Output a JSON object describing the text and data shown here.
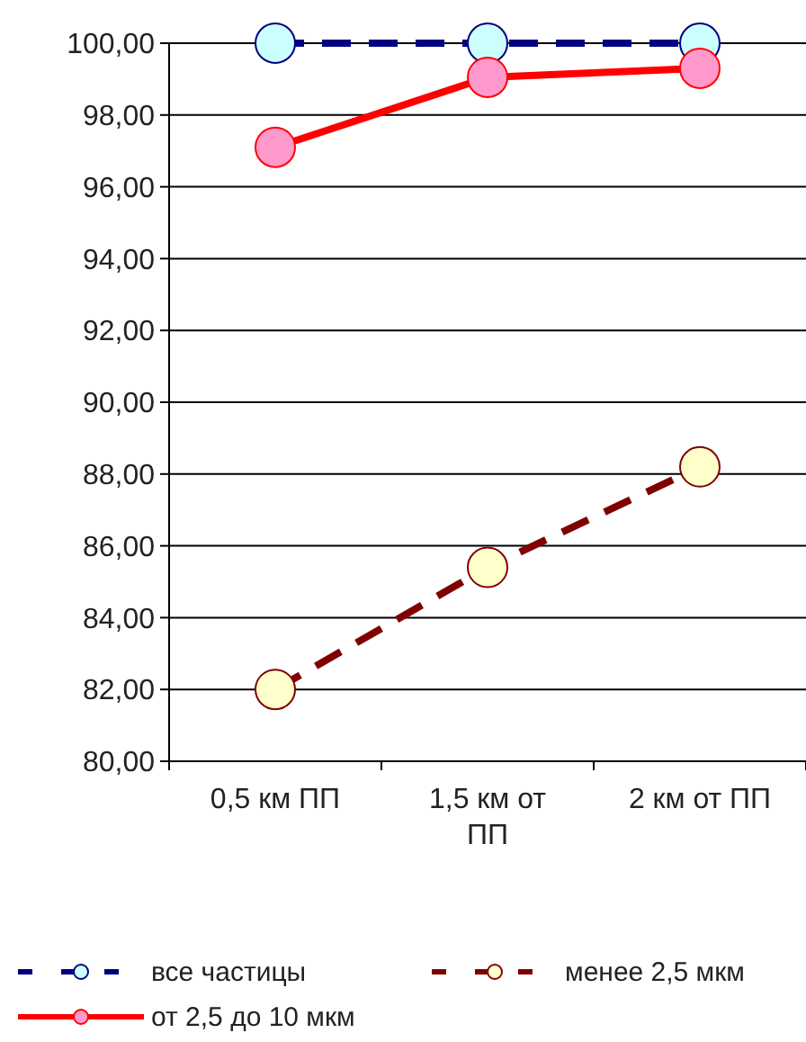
{
  "chart_data": {
    "type": "line",
    "categories": [
      "0,5 км ПП",
      "1,5 км от ПП",
      "2 км от ПП"
    ],
    "series": [
      {
        "name": "все частицы",
        "color": "#000080",
        "values": [
          100,
          100,
          100
        ],
        "line_style": "dashed"
      },
      {
        "name": "менее 2,5 мкм",
        "color": "#800000",
        "values": [
          82.0,
          85.4,
          88.2
        ],
        "line_style": "dashed"
      },
      {
        "name": "от 2,5 до 10 мкм",
        "color": "#ff0000",
        "values": [
          97.1,
          99.05,
          99.3
        ],
        "line_style": "solid"
      }
    ],
    "ylim": [
      80,
      100
    ],
    "yticks": [
      {
        "value": 80,
        "label": "80,00"
      },
      {
        "value": 82,
        "label": "82,00"
      },
      {
        "value": 84,
        "label": "84,00"
      },
      {
        "value": 86,
        "label": "86,00"
      },
      {
        "value": 88,
        "label": "88,00"
      },
      {
        "value": 90,
        "label": "90,00"
      },
      {
        "value": 92,
        "label": "92,00"
      },
      {
        "value": 94,
        "label": "94,00"
      },
      {
        "value": 96,
        "label": "96,00"
      },
      {
        "value": 98,
        "label": "98,00"
      },
      {
        "value": 100,
        "label": "100,00"
      }
    ],
    "grid": "y",
    "legend": "bottom",
    "marker": "circle"
  }
}
